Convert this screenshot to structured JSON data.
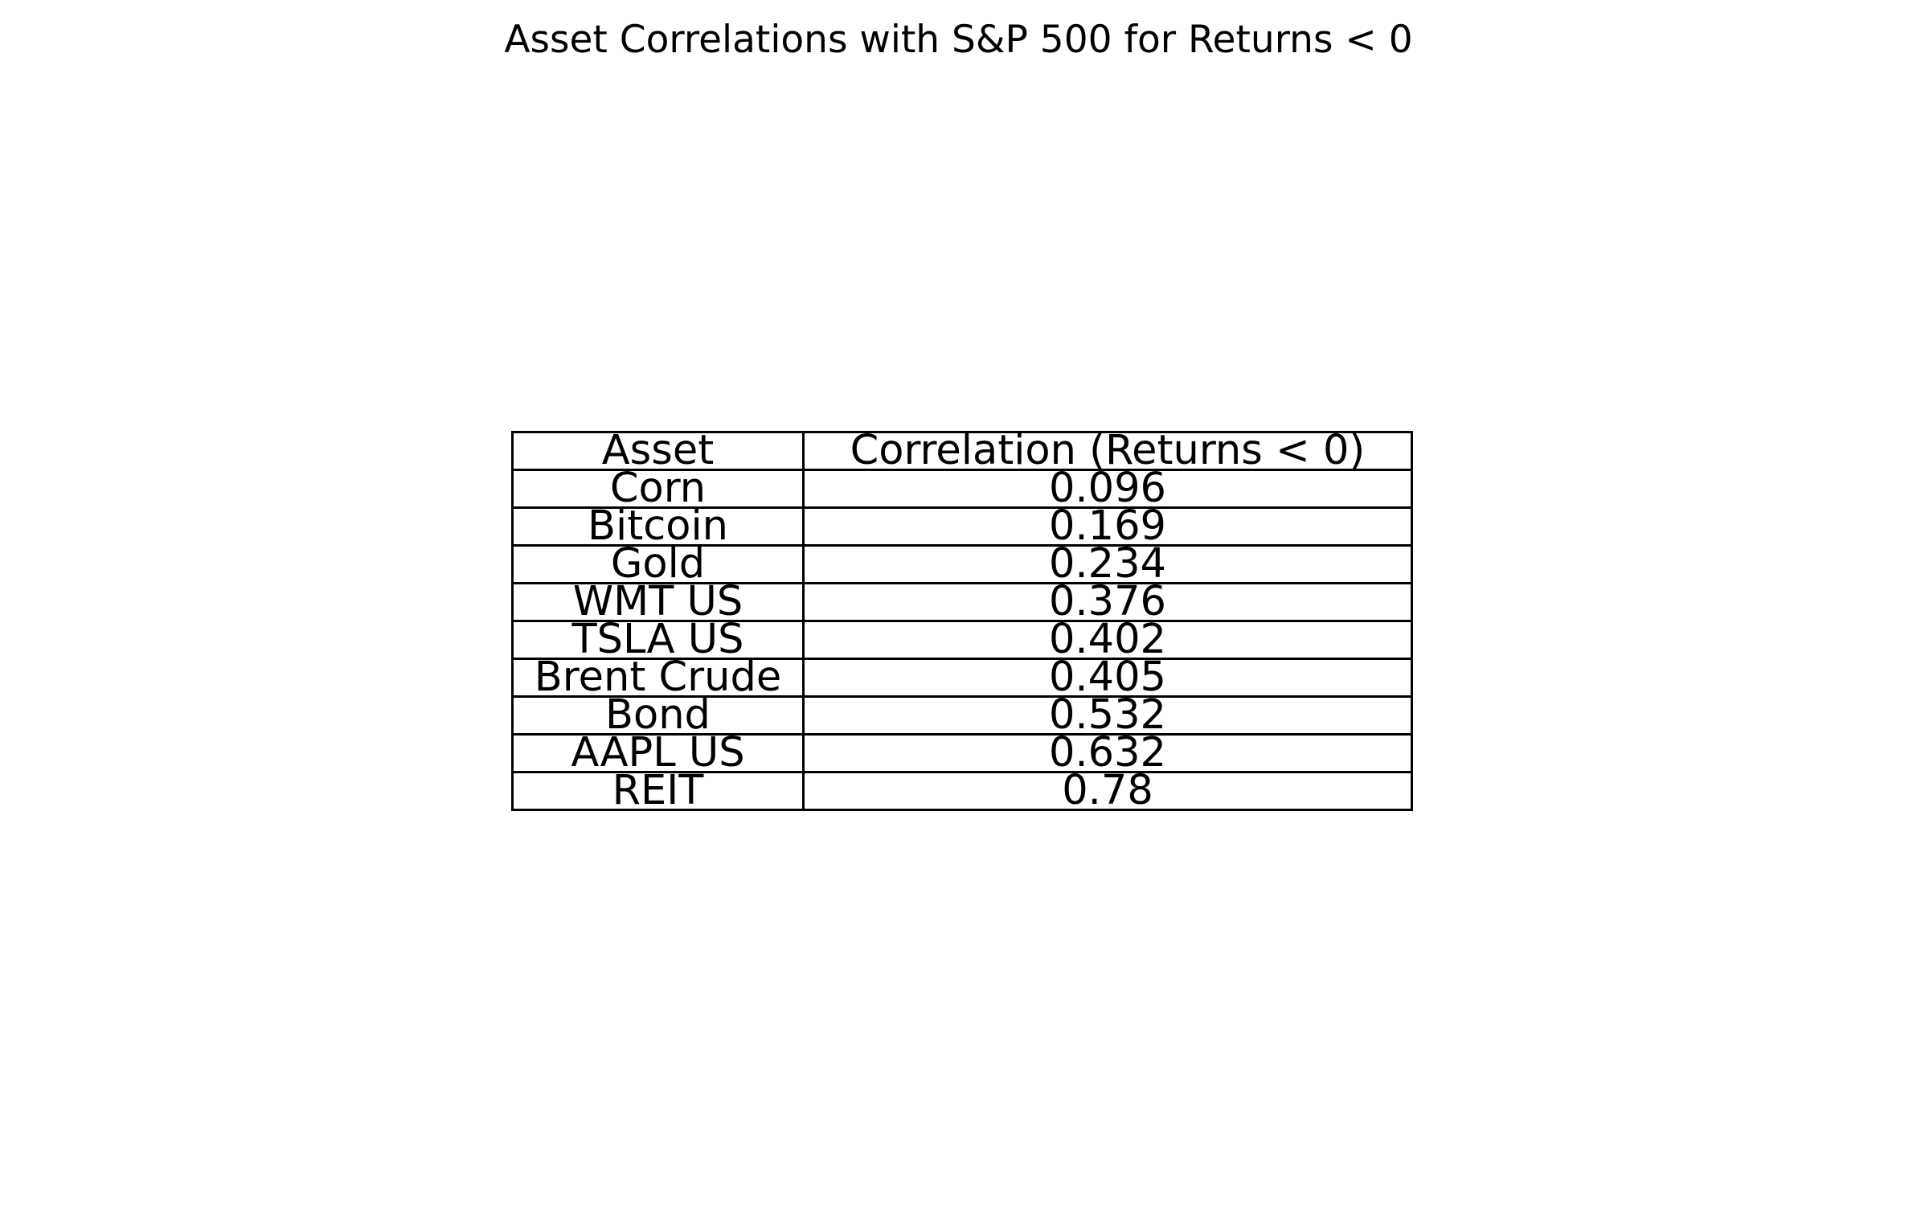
{
  "chart_data": {
    "type": "table",
    "title": "Asset Correlations with S&P 500 for Returns < 0",
    "columns": [
      "Asset",
      "Correlation (Returns < 0)"
    ],
    "rows": [
      [
        "Corn",
        "0.096"
      ],
      [
        "Bitcoin",
        "0.169"
      ],
      [
        "Gold",
        "0.234"
      ],
      [
        "WMT US",
        "0.376"
      ],
      [
        "TSLA US",
        "0.402"
      ],
      [
        "Brent Crude",
        "0.405"
      ],
      [
        "Bond",
        "0.532"
      ],
      [
        "AAPL US",
        "0.632"
      ],
      [
        "REIT",
        "0.78"
      ]
    ],
    "border_color": "#000000",
    "background_color": "#ffffff"
  }
}
